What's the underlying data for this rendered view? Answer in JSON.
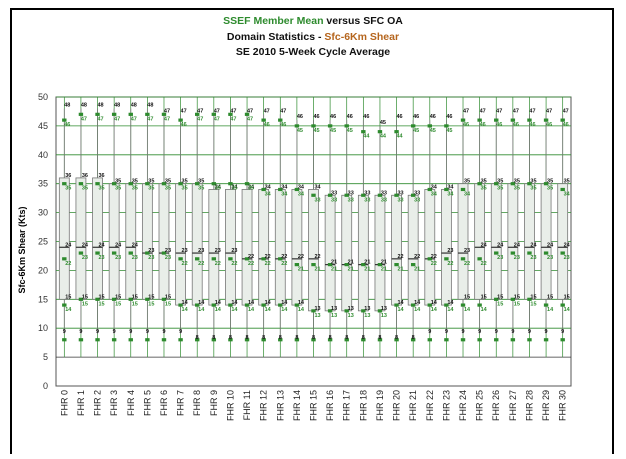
{
  "title": {
    "line1_a": "SSEF Member Mean",
    "line1_b": " versus SFC OA",
    "line2_a": "Domain Statistics - ",
    "line2_b": "Sfc-6Km Shear",
    "line3": "SE 2010 5-Week Cycle Average"
  },
  "colors": {
    "accent_green": "#2e8b2e",
    "accent_orange": "#b5651d",
    "grid": "#2e8b2e",
    "box_fill": "#e9eee9"
  },
  "chart_data": {
    "type": "box",
    "ylabel": "Sfc-6Km Shear (Kts)",
    "ylim": [
      0,
      50
    ],
    "yticks": [
      0,
      5,
      10,
      15,
      20,
      25,
      30,
      35,
      40,
      45,
      50
    ],
    "grid": true,
    "categories": [
      "FHR 0",
      "FHR 1",
      "FHR 2",
      "FHR 3",
      "FHR 4",
      "FHR 5",
      "FHR 6",
      "FHR 7",
      "FHR 8",
      "FHR 9",
      "FHR 10",
      "FHR 11",
      "FHR 12",
      "FHR 13",
      "FHR 14",
      "FHR 15",
      "FHR 16",
      "FHR 17",
      "FHR 18",
      "FHR 19",
      "FHR 20",
      "FHR 21",
      "FHR 22",
      "FHR 23",
      "FHR 24",
      "FHR 25",
      "FHR 26",
      "FHR 27",
      "FHR 28",
      "FHR 29",
      "FHR 30"
    ],
    "series": [
      {
        "name": "SFC OA",
        "max": [
          48,
          48,
          48,
          48,
          48,
          48,
          47,
          47,
          47,
          47,
          47,
          47,
          47,
          47,
          46,
          46,
          46,
          46,
          46,
          45,
          46,
          46,
          46,
          46,
          47,
          47,
          47,
          47,
          47,
          47,
          47
        ],
        "q3": [
          36,
          36,
          36,
          35,
          35,
          35,
          35,
          35,
          35,
          34,
          34,
          34,
          34,
          34,
          34,
          34,
          33,
          33,
          33,
          33,
          33,
          33,
          34,
          34,
          35,
          35,
          35,
          35,
          35,
          35,
          35
        ],
        "median": [
          24,
          24,
          24,
          24,
          24,
          23,
          23,
          23,
          23,
          23,
          23,
          22,
          22,
          22,
          22,
          22,
          21,
          21,
          21,
          21,
          22,
          22,
          22,
          23,
          23,
          24,
          24,
          24,
          24,
          24,
          24
        ],
        "q1": [
          15,
          15,
          15,
          15,
          15,
          15,
          15,
          14,
          14,
          14,
          14,
          14,
          14,
          14,
          14,
          13,
          13,
          13,
          13,
          13,
          14,
          14,
          14,
          14,
          15,
          15,
          15,
          15,
          15,
          15,
          15
        ],
        "min": [
          9,
          9,
          9,
          9,
          9,
          9,
          9,
          9,
          8,
          8,
          8,
          8,
          8,
          8,
          8,
          8,
          8,
          8,
          8,
          8,
          8,
          8,
          9,
          9,
          9,
          9,
          9,
          9,
          9,
          9,
          9
        ]
      },
      {
        "name": "SSEF Member Mean",
        "max": [
          46,
          47,
          47,
          47,
          47,
          47,
          47,
          46,
          47,
          47,
          47,
          47,
          46,
          46,
          45,
          45,
          45,
          45,
          44,
          44,
          44,
          45,
          45,
          45,
          46,
          46,
          46,
          46,
          46,
          46,
          46
        ],
        "q3": [
          35,
          35,
          35,
          35,
          35,
          35,
          35,
          35,
          35,
          35,
          35,
          35,
          34,
          34,
          34,
          33,
          33,
          33,
          33,
          33,
          33,
          33,
          34,
          34,
          34,
          35,
          35,
          35,
          35,
          35,
          34
        ],
        "median": [
          22,
          23,
          23,
          23,
          23,
          23,
          23,
          22,
          22,
          22,
          22,
          22,
          22,
          22,
          21,
          21,
          21,
          21,
          21,
          21,
          21,
          21,
          22,
          22,
          22,
          22,
          23,
          23,
          23,
          23,
          23
        ],
        "q1": [
          14,
          15,
          15,
          15,
          15,
          15,
          15,
          14,
          14,
          14,
          14,
          14,
          14,
          14,
          14,
          13,
          13,
          13,
          13,
          13,
          14,
          14,
          14,
          14,
          14,
          14,
          15,
          15,
          15,
          14,
          14
        ],
        "min": [
          8,
          8,
          8,
          8,
          8,
          8,
          8,
          8,
          8,
          8,
          8,
          8,
          8,
          8,
          8,
          8,
          8,
          8,
          8,
          8,
          8,
          8,
          8,
          8,
          8,
          8,
          8,
          8,
          8,
          8,
          8
        ]
      }
    ]
  }
}
